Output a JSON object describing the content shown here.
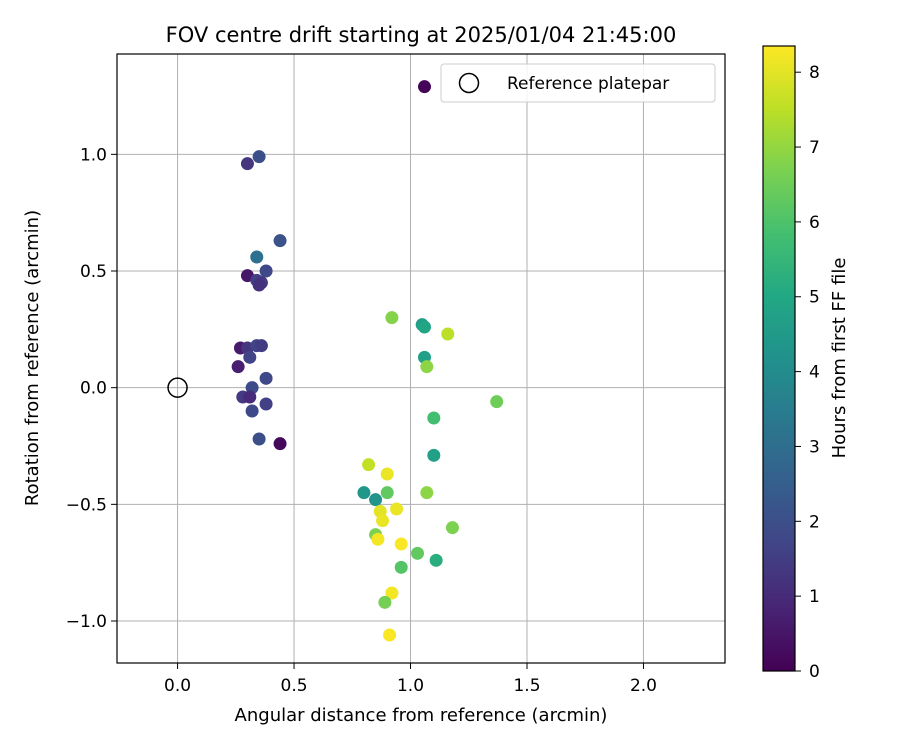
{
  "chart_data": {
    "type": "scatter",
    "title": "FOV centre drift starting at 2025/01/04 21:45:00",
    "xlabel": "Angular distance from reference (arcmin)",
    "ylabel": "Rotation from reference (arcmin)",
    "xlim": [
      -0.26,
      2.35
    ],
    "ylim": [
      -1.18,
      1.43
    ],
    "xticks": [
      0.0,
      0.5,
      1.0,
      1.5,
      2.0
    ],
    "xtick_labels": [
      "0.0",
      "0.5",
      "1.0",
      "1.5",
      "2.0"
    ],
    "yticks": [
      -1.0,
      -0.5,
      0.0,
      0.5,
      1.0
    ],
    "ytick_labels": [
      "−1.0",
      "−0.5",
      "0.0",
      "0.5",
      "1.0"
    ],
    "grid": true,
    "legend": {
      "location": "top-right",
      "entries": [
        "Reference platepar"
      ]
    },
    "reference_point": {
      "x": 0.0,
      "y": 0.0
    },
    "colorbar": {
      "label": "Hours from first FF file",
      "range": [
        0,
        8.35
      ],
      "ticks": [
        0,
        1,
        2,
        3,
        4,
        5,
        6,
        7,
        8
      ],
      "tick_labels": [
        "0",
        "1",
        "2",
        "3",
        "4",
        "5",
        "6",
        "7",
        "8"
      ],
      "colormap": "viridis"
    },
    "points": [
      {
        "x": 1.06,
        "y": 1.29,
        "c": 0.1
      },
      {
        "x": 0.3,
        "y": 0.96,
        "c": 1.3
      },
      {
        "x": 0.35,
        "y": 0.99,
        "c": 2.0
      },
      {
        "x": 0.44,
        "y": 0.63,
        "c": 2.1
      },
      {
        "x": 0.34,
        "y": 0.56,
        "c": 3.1
      },
      {
        "x": 0.38,
        "y": 0.5,
        "c": 1.8
      },
      {
        "x": 0.3,
        "y": 0.48,
        "c": 0.5
      },
      {
        "x": 0.34,
        "y": 0.46,
        "c": 1.6
      },
      {
        "x": 0.36,
        "y": 0.45,
        "c": 1.4
      },
      {
        "x": 0.35,
        "y": 0.44,
        "c": 1.2
      },
      {
        "x": 0.27,
        "y": 0.17,
        "c": 0.6
      },
      {
        "x": 0.3,
        "y": 0.17,
        "c": 1.3
      },
      {
        "x": 0.34,
        "y": 0.18,
        "c": 1.7
      },
      {
        "x": 0.36,
        "y": 0.18,
        "c": 1.5
      },
      {
        "x": 0.31,
        "y": 0.13,
        "c": 1.7
      },
      {
        "x": 0.26,
        "y": 0.09,
        "c": 0.7
      },
      {
        "x": 0.38,
        "y": 0.04,
        "c": 1.8
      },
      {
        "x": 0.32,
        "y": 0.0,
        "c": 1.9
      },
      {
        "x": 0.28,
        "y": -0.04,
        "c": 1.4
      },
      {
        "x": 0.31,
        "y": -0.04,
        "c": 1.0
      },
      {
        "x": 0.38,
        "y": -0.07,
        "c": 1.6
      },
      {
        "x": 0.32,
        "y": -0.1,
        "c": 1.8
      },
      {
        "x": 0.35,
        "y": -0.22,
        "c": 2.0
      },
      {
        "x": 0.44,
        "y": -0.24,
        "c": 0.2
      },
      {
        "x": 0.92,
        "y": 0.3,
        "c": 6.8
      },
      {
        "x": 1.05,
        "y": 0.27,
        "c": 4.6
      },
      {
        "x": 1.06,
        "y": 0.26,
        "c": 4.9
      },
      {
        "x": 1.16,
        "y": 0.23,
        "c": 7.5
      },
      {
        "x": 1.06,
        "y": 0.13,
        "c": 4.7
      },
      {
        "x": 1.07,
        "y": 0.09,
        "c": 6.9
      },
      {
        "x": 1.37,
        "y": -0.06,
        "c": 6.5
      },
      {
        "x": 1.1,
        "y": -0.13,
        "c": 5.8
      },
      {
        "x": 1.1,
        "y": -0.29,
        "c": 4.7
      },
      {
        "x": 0.82,
        "y": -0.33,
        "c": 7.6
      },
      {
        "x": 0.9,
        "y": -0.37,
        "c": 8.1
      },
      {
        "x": 0.8,
        "y": -0.45,
        "c": 4.4
      },
      {
        "x": 0.9,
        "y": -0.45,
        "c": 6.3
      },
      {
        "x": 1.07,
        "y": -0.45,
        "c": 6.9
      },
      {
        "x": 0.85,
        "y": -0.48,
        "c": 4.3
      },
      {
        "x": 0.87,
        "y": -0.53,
        "c": 8.0
      },
      {
        "x": 0.94,
        "y": -0.52,
        "c": 8.1
      },
      {
        "x": 0.88,
        "y": -0.57,
        "c": 8.1
      },
      {
        "x": 1.18,
        "y": -0.6,
        "c": 6.7
      },
      {
        "x": 0.85,
        "y": -0.63,
        "c": 6.7
      },
      {
        "x": 0.86,
        "y": -0.65,
        "c": 8.2
      },
      {
        "x": 0.96,
        "y": -0.67,
        "c": 8.3
      },
      {
        "x": 1.03,
        "y": -0.71,
        "c": 6.3
      },
      {
        "x": 1.11,
        "y": -0.74,
        "c": 5.2
      },
      {
        "x": 0.96,
        "y": -0.77,
        "c": 6.1
      },
      {
        "x": 0.92,
        "y": -0.88,
        "c": 8.2
      },
      {
        "x": 0.89,
        "y": -0.92,
        "c": 6.6
      },
      {
        "x": 0.91,
        "y": -1.06,
        "c": 8.3
      }
    ]
  }
}
